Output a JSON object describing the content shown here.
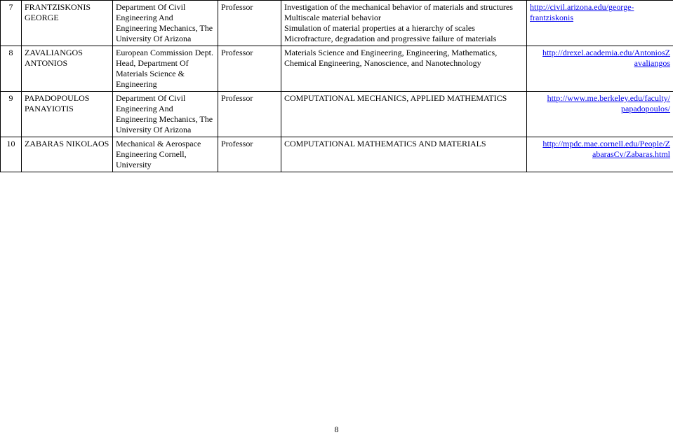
{
  "page_number": "8",
  "rows": [
    {
      "num": "7",
      "name": "FRANTZISKONIS GEORGE",
      "dept": "Department Of Civil Engineering And Engineering Mechanics, The University Of Arizona",
      "title": "Professor",
      "topic": "Investigation of the mechanical behavior of materials and structures\nMultiscale material behavior\nSimulation of material properties at a hierarchy of scales\nMicrofracture, degradation and progressive failure of materials",
      "link_l1": "http://civil.arizona.edu/george-",
      "link_l2": "frantziskonis"
    },
    {
      "num": "8",
      "name": "ZAVALIANGOS ANTONIOS",
      "dept": "European Commission Dept. Head, Department Of Materials Science & Engineering",
      "title": "Professor",
      "topic": "Materials Science and Engineering, Engineering, Mathematics, Chemical Engineering, Nanoscience, and Nanotechnology",
      "link_l1": "http://drexel.academia.edu/AntoniosZ",
      "link_l2": "avaliangos"
    },
    {
      "num": "9",
      "name": "PAPADOPOULOS PANAYIOTIS",
      "dept": "Department Of Civil Engineering And Engineering Mechanics, The University Of Arizona",
      "title": "Professor",
      "topic": "COMPUTATIONAL MECHANICS, APPLIED MATHEMATICS",
      "link_l1": "http://www.me.berkeley.edu/faculty/",
      "link_l2": "papadopoulos/"
    },
    {
      "num": "10",
      "name": "ZABARAS NIKOLAOS",
      "dept": "Mechanical & Aerospace Engineering Cornell, University",
      "title": "Professor",
      "topic": "COMPUTATIONAL MATHEMATICS AND MATERIALS",
      "link_l1": "http://mpdc.mae.cornell.edu/People/Z",
      "link_l2": "abarasCv/Zabaras.html"
    }
  ]
}
